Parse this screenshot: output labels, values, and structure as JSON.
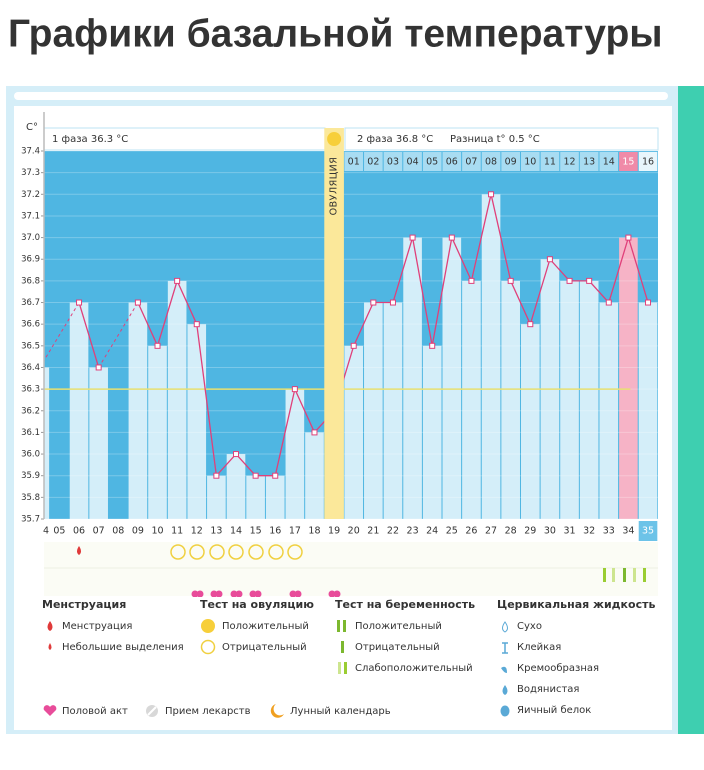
{
  "chart_data": {
    "type": "line",
    "title": "Графики базальной температуры",
    "y_label": "C°",
    "phase_1": "1 фаза 36.3 °C",
    "phase_2": "2 фаза 36.8 °C",
    "difference": "Разница t° 0.5 °C",
    "ovulation_label": "ОВУЛЯЦИЯ",
    "phase_2_days": [
      "01",
      "02",
      "03",
      "04",
      "05",
      "06",
      "07",
      "08",
      "09",
      "10",
      "11",
      "12",
      "13",
      "14",
      "15",
      "16"
    ],
    "categories": [
      "4",
      "05",
      "06",
      "07",
      "08",
      "09",
      "10",
      "11",
      "12",
      "13",
      "14",
      "15",
      "16",
      "17",
      "18",
      "19",
      "20",
      "21",
      "22",
      "23",
      "24",
      "25",
      "26",
      "27",
      "28",
      "29",
      "30",
      "31",
      "32",
      "33",
      "34",
      "35"
    ],
    "values": [
      36.4,
      null,
      36.7,
      36.4,
      null,
      36.7,
      36.5,
      36.8,
      36.6,
      35.9,
      36.0,
      35.9,
      35.9,
      36.3,
      36.1,
      36.2,
      36.5,
      36.7,
      36.7,
      37.0,
      36.5,
      37.0,
      36.8,
      37.2,
      36.8,
      36.6,
      36.9,
      36.8,
      36.8,
      36.7,
      37.0,
      36.7
    ],
    "color": "#e0407a",
    "coverline": 36.3,
    "ylim": [
      35.7,
      37.4
    ],
    "yticks": [
      35.7,
      35.8,
      35.9,
      {
        "value": 36,
        "label": "36.0"
      },
      36.1,
      36.2,
      36.3,
      36.4,
      36.5,
      36.6,
      36.7,
      36.8,
      36.9,
      {
        "value": 37,
        "label": "37.0"
      },
      37.1,
      37.2,
      37.3,
      37.4
    ],
    "grid": true
  },
  "legend": {
    "groups": [
      {
        "title": "Менструация",
        "items": [
          "Менструация",
          "Небольшие выделения"
        ]
      },
      {
        "title": "Тест на овуляцию",
        "items": [
          "Положительный",
          "Отрицательный"
        ]
      },
      {
        "title": "Тест на беременность",
        "items": [
          "Положительный",
          "Отрицательный",
          "Слабоположительный"
        ]
      },
      {
        "title": "Цервикальная жидкость",
        "items": [
          "Сухо",
          "Клейкая",
          "Кремообразная",
          "Водянистая",
          "Яичный белок"
        ]
      }
    ],
    "other": [
      "Половой акт",
      "Прием лекарств",
      "Лунный календарь"
    ]
  }
}
